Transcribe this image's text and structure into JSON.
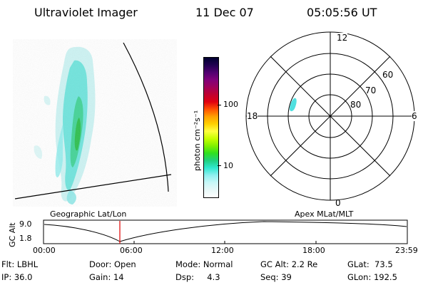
{
  "header": {
    "instrument": "Ultraviolet Imager",
    "date": "11 Dec 07",
    "time": "05:05:56 UT"
  },
  "colorbar": {
    "unit_label": "photon cm⁻²s⁻¹",
    "ticks": [
      "100",
      "10"
    ],
    "colors": [
      "#000030",
      "#200050",
      "#500070",
      "#80007a",
      "#a0005a",
      "#c00030",
      "#e00010",
      "#ff5000",
      "#ffa000",
      "#ffd000",
      "#ffff40",
      "#c8ff00",
      "#80f000",
      "#30e020",
      "#20d080",
      "#30e8d0",
      "#90f0f0",
      "#c8f8f8",
      "#e8f8f8",
      "#ffffff"
    ]
  },
  "polar_plot": {
    "mlt_labels": {
      "top": "12",
      "bottom": "0",
      "left": "18",
      "right": "6"
    },
    "lat_labels": [
      "60",
      "70",
      "80"
    ]
  },
  "timeline": {
    "title_left": "Geographic Lat/Lon",
    "title_right": "Apex MLat/MLT",
    "axis_label": "GC Alt",
    "y_ticks": [
      "9.0",
      "1.8"
    ],
    "x_ticks": [
      "00:00",
      "06:00",
      "12:00",
      "18:00",
      "23:59"
    ],
    "marker_color": "#e00000"
  },
  "info": {
    "filter": "Flt: LBHL",
    "ip": "IP: 36.0",
    "door": "Door: Open",
    "gain": "Gain: 14",
    "mode": "Mode: Normal",
    "dsp": "Dsp:     4.3",
    "gc_alt": "GC Alt: 2.2 Re",
    "seq": "Seq: 39",
    "glat": "GLat:  73.5",
    "glon": "GLon: 192.5"
  }
}
